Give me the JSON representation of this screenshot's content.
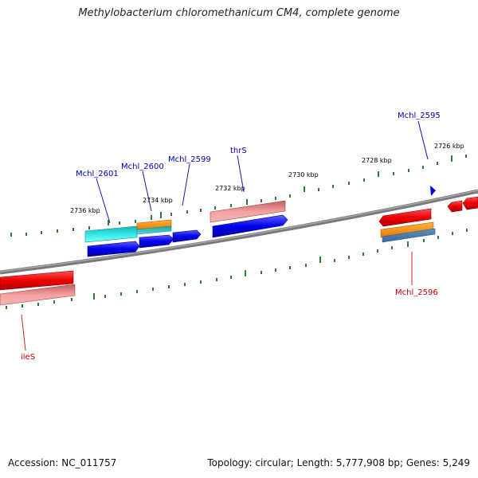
{
  "title": "Methylobacterium chloromethanicum CM4, complete genome",
  "footer": {
    "accession": "Accession: NC_011757",
    "topology": "Topology: circular; Length: 5,777,908 bp; Genes: 5,249"
  },
  "ticks": [
    "2726 kbp",
    "2728 kbp",
    "2730 kbp",
    "2732 kbp",
    "2734 kbp",
    "2736 kbp"
  ],
  "gene_labels": {
    "forward": [
      "Mchl_2601",
      "Mchl_2600",
      "Mchl_2599",
      "thrS",
      "Mchl_2595"
    ],
    "reverse": [
      "Mchl_2596",
      "ileS"
    ]
  },
  "colors": {
    "backbone": "#808080",
    "tick": "#2e7d32",
    "forward_gene": "#0000e0",
    "reverse_gene": "#e00000",
    "forward_label": "#0000b0",
    "reverse_label": "#c00000"
  }
}
